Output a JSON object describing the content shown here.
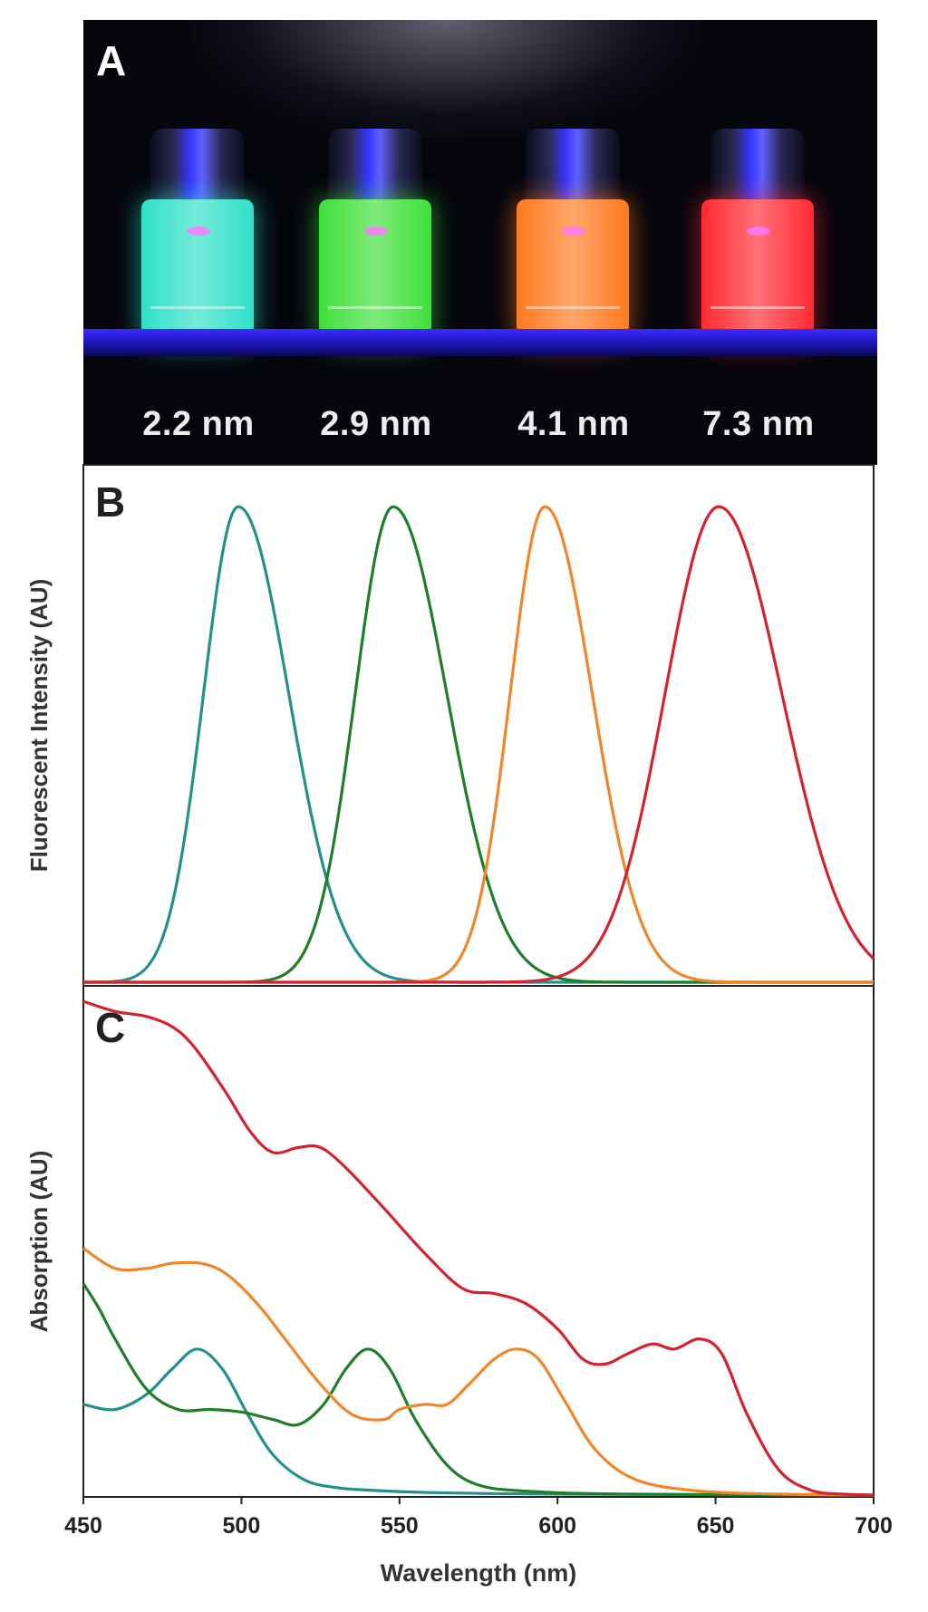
{
  "figure": {
    "panel_a": {
      "letter": "A",
      "vials": [
        {
          "size_label": "2.2 nm",
          "color": "#2fe0c8"
        },
        {
          "size_label": "2.9 nm",
          "color": "#3ee03a"
        },
        {
          "size_label": "4.1 nm",
          "color": "#ff7a20"
        },
        {
          "size_label": "7.3 nm",
          "color": "#ff2a32"
        }
      ]
    },
    "panel_b_letter": "B",
    "panel_c_letter": "C"
  },
  "chart_data": [
    {
      "panel": "B",
      "type": "line",
      "title": "",
      "xlabel": "",
      "ylabel": "Fluorescent Intensity (AU)",
      "xlim": [
        450,
        700
      ],
      "ylim": [
        0,
        1.05
      ],
      "grid": false,
      "legend": "none",
      "series": [
        {
          "name": "2.2 nm",
          "color": "#23908c",
          "peak": 499,
          "width_left": 11,
          "width_right": 16,
          "height": 1.0
        },
        {
          "name": "2.9 nm",
          "color": "#1d7f28",
          "peak": 548,
          "width_left": 12,
          "width_right": 17,
          "height": 1.0
        },
        {
          "name": "4.1 nm",
          "color": "#f0862a",
          "peak": 596,
          "width_left": 11,
          "width_right": 15,
          "height": 1.0
        },
        {
          "name": "7.3 nm",
          "color": "#d42330",
          "peak": 651,
          "width_left": 17,
          "width_right": 20,
          "height": 1.0
        }
      ]
    },
    {
      "panel": "C",
      "type": "line",
      "title": "",
      "xlabel": "Wavelength (nm)",
      "ylabel": "Absorption (AU)",
      "xlim": [
        450,
        700
      ],
      "ylim": [
        0,
        1.0
      ],
      "xticks": [
        450,
        500,
        550,
        600,
        650,
        700
      ],
      "grid": false,
      "legend": "none",
      "series": [
        {
          "name": "2.2 nm",
          "color": "#23908c",
          "x": [
            450,
            460,
            470,
            478,
            486,
            494,
            502,
            510,
            520,
            530,
            540,
            560,
            600,
            700
          ],
          "y": [
            0.18,
            0.17,
            0.2,
            0.25,
            0.29,
            0.25,
            0.16,
            0.08,
            0.03,
            0.015,
            0.01,
            0.005,
            0.002,
            0.0
          ]
        },
        {
          "name": "2.9 nm",
          "color": "#1d7f28",
          "x": [
            450,
            455,
            460,
            470,
            480,
            490,
            500,
            510,
            518,
            526,
            533,
            540,
            547,
            555,
            565,
            575,
            590,
            620,
            700
          ],
          "y": [
            0.42,
            0.37,
            0.31,
            0.21,
            0.17,
            0.17,
            0.165,
            0.15,
            0.14,
            0.18,
            0.25,
            0.29,
            0.25,
            0.15,
            0.06,
            0.02,
            0.008,
            0.002,
            0.0
          ]
        },
        {
          "name": "4.1 nm",
          "color": "#f0862a",
          "x": [
            450,
            460,
            470,
            478,
            487,
            495,
            505,
            515,
            525,
            535,
            545,
            550,
            558,
            565,
            572,
            580,
            587,
            594,
            602,
            612,
            625,
            645,
            670,
            700
          ],
          "y": [
            0.49,
            0.45,
            0.45,
            0.46,
            0.46,
            0.44,
            0.38,
            0.3,
            0.22,
            0.16,
            0.15,
            0.17,
            0.18,
            0.18,
            0.22,
            0.27,
            0.29,
            0.27,
            0.19,
            0.09,
            0.03,
            0.008,
            0.002,
            0.0
          ]
        },
        {
          "name": "7.3 nm",
          "color": "#d42330",
          "x": [
            450,
            460,
            470,
            478,
            485,
            495,
            503,
            510,
            518,
            525,
            533,
            545,
            558,
            570,
            580,
            590,
            600,
            608,
            615,
            622,
            630,
            637,
            645,
            652,
            660,
            670,
            680,
            690,
            700
          ],
          "y": [
            0.98,
            0.96,
            0.95,
            0.93,
            0.89,
            0.8,
            0.72,
            0.68,
            0.69,
            0.69,
            0.65,
            0.57,
            0.48,
            0.41,
            0.4,
            0.38,
            0.33,
            0.27,
            0.26,
            0.28,
            0.3,
            0.29,
            0.31,
            0.28,
            0.16,
            0.05,
            0.01,
            0.002,
            0.0
          ]
        }
      ]
    }
  ]
}
